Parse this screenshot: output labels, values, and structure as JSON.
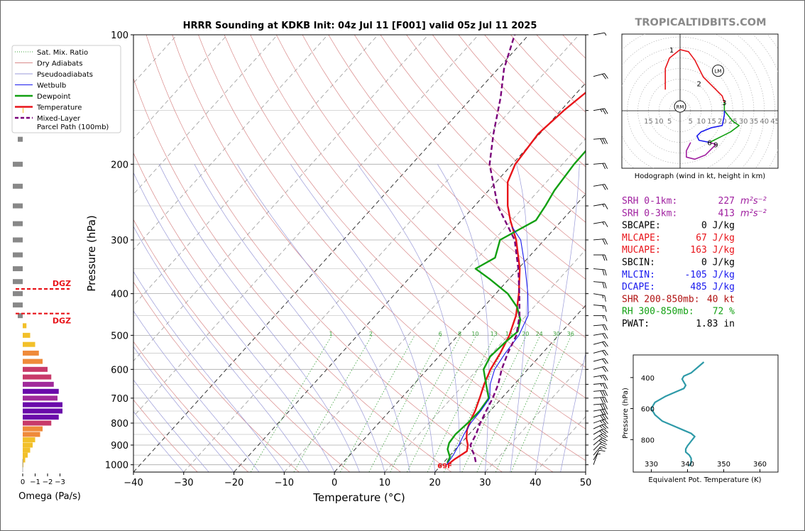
{
  "title": "HRRR Sounding at KDKB Init: 04z Jul 11 [F001] valid 05z Jul 11 2025",
  "watermark": "TROPICALTIDBITS.COM",
  "colors": {
    "temperature": "#e8141a",
    "dewpoint": "#12a012",
    "wetbulb": "#1a1aee",
    "parcel": "#7a007a",
    "dry_adiabat": "#d98a8a",
    "moist_adiabat": "#9a9ad8",
    "mixing_ratio": "#3aa03a",
    "isotherm": "#999999",
    "dgz": "#e8141a",
    "theta_e": "#2e9aa8"
  },
  "chart_data": [
    {
      "type": "line",
      "name": "skew-t",
      "xlabel": "Temperature (°C)",
      "ylabel": "Pressure (hPa)",
      "xlim": [
        -40,
        50
      ],
      "ylim": [
        1040,
        100
      ],
      "y_scale": "log",
      "x_ticks": [
        "−40",
        "−30",
        "−20",
        "−10",
        "0",
        "10",
        "20",
        "30",
        "40",
        "50"
      ],
      "y_ticks": [
        "100",
        "200",
        "300",
        "400",
        "500",
        "600",
        "700",
        "800",
        "900",
        "1000"
      ],
      "surface_temp_label": "69F",
      "legend": [
        "Sat. Mix. Ratio",
        "Dry Adiabats",
        "Pseudoadiabats",
        "Wetbulb",
        "Dewpoint",
        "Temperature",
        "Mixed-Layer Parcel Path (100mb)"
      ],
      "legend_position": "upper-left",
      "mixing_ratio_labels": [
        "1",
        "2",
        "6",
        "8",
        "10",
        "13",
        "16",
        "20",
        "24",
        "30",
        "36"
      ],
      "series": [
        {
          "name": "Temperature",
          "points": [
            [
              1000,
              21.2
            ],
            [
              970,
              21.6
            ],
            [
              930,
              22.6
            ],
            [
              900,
              21.7
            ],
            [
              870,
              20.3
            ],
            [
              830,
              18.8
            ],
            [
              790,
              17.8
            ],
            [
              750,
              17.0
            ],
            [
              700,
              15.6
            ],
            [
              650,
              14.0
            ],
            [
              600,
              12.6
            ],
            [
              550,
              11.6
            ],
            [
              500,
              10.2
            ],
            [
              450,
              8.0
            ],
            [
              400,
              4.6
            ],
            [
              350,
              0.3
            ],
            [
              300,
              -5.6
            ],
            [
              270,
              -10.3
            ],
            [
              250,
              -13.4
            ],
            [
              220,
              -17.7
            ],
            [
              200,
              -19.4
            ],
            [
              170,
              -20.3
            ],
            [
              150,
              -19.4
            ],
            [
              130,
              -17.7
            ],
            [
              113,
              -15.8
            ],
            [
              100,
              -14.3
            ]
          ]
        },
        {
          "name": "Dewpoint",
          "points": [
            [
              990,
              20.8
            ],
            [
              960,
              20.3
            ],
            [
              920,
              18.4
            ],
            [
              890,
              17.6
            ],
            [
              850,
              17.3
            ],
            [
              800,
              17.7
            ],
            [
              750,
              17.9
            ],
            [
              700,
              17.4
            ],
            [
              650,
              14.4
            ],
            [
              600,
              11.2
            ],
            [
              560,
              10.2
            ],
            [
              520,
              10.6
            ],
            [
              490,
              11.2
            ],
            [
              460,
              9.6
            ],
            [
              430,
              6.7
            ],
            [
              400,
              2.4
            ],
            [
              370,
              -3.8
            ],
            [
              350,
              -8.5
            ],
            [
              330,
              -6.6
            ],
            [
              300,
              -8.8
            ],
            [
              270,
              -5.2
            ],
            [
              250,
              -5.9
            ],
            [
              230,
              -6.9
            ],
            [
              200,
              -7.7
            ],
            [
              175,
              -7.8
            ],
            [
              150,
              -6.1
            ],
            [
              130,
              -4.4
            ],
            [
              115,
              -3.0
            ],
            [
              100,
              -1.8
            ]
          ]
        },
        {
          "name": "Wetbulb",
          "points": [
            [
              1000,
              21.0
            ],
            [
              950,
              20.6
            ],
            [
              900,
              19.9
            ],
            [
              850,
              19.0
            ],
            [
              800,
              18.3
            ],
            [
              750,
              18.1
            ],
            [
              700,
              17.6
            ],
            [
              650,
              15.2
            ],
            [
              600,
              13.4
            ],
            [
              550,
              12.6
            ],
            [
              500,
              12.1
            ],
            [
              450,
              10.4
            ],
            [
              400,
              6.4
            ],
            [
              350,
              1.4
            ],
            [
              300,
              -4.7
            ],
            [
              280,
              -8.7
            ]
          ]
        },
        {
          "name": "Mixed-Layer Parcel Path (100mb)",
          "points": [
            [
              985,
              26.3
            ],
            [
              950,
              24.8
            ],
            [
              920,
              23.2
            ],
            [
              900,
              22.2
            ],
            [
              850,
              21.4
            ],
            [
              800,
              20.2
            ],
            [
              750,
              19.2
            ],
            [
              700,
              18.2
            ],
            [
              650,
              16.8
            ],
            [
              600,
              14.8
            ],
            [
              550,
              13.1
            ],
            [
              500,
              11.6
            ],
            [
              450,
              8.7
            ],
            [
              400,
              4.7
            ],
            [
              350,
              0.0
            ],
            [
              300,
              -5.9
            ],
            [
              250,
              -15.4
            ],
            [
              200,
              -24.5
            ],
            [
              170,
              -29.2
            ],
            [
              140,
              -34.3
            ],
            [
              120,
              -38.8
            ],
            [
              100,
              -42.8
            ]
          ]
        }
      ],
      "wind_barbs": [
        {
          "p": 1000,
          "speed": 5,
          "dir": 200
        },
        {
          "p": 975,
          "speed": 10,
          "dir": 210
        },
        {
          "p": 950,
          "speed": 15,
          "dir": 220
        },
        {
          "p": 925,
          "speed": 20,
          "dir": 225
        },
        {
          "p": 900,
          "speed": 25,
          "dir": 230
        },
        {
          "p": 875,
          "speed": 25,
          "dir": 235
        },
        {
          "p": 850,
          "speed": 25,
          "dir": 240
        },
        {
          "p": 825,
          "speed": 25,
          "dir": 245
        },
        {
          "p": 800,
          "speed": 25,
          "dir": 250
        },
        {
          "p": 775,
          "speed": 30,
          "dir": 255
        },
        {
          "p": 750,
          "speed": 30,
          "dir": 260
        },
        {
          "p": 725,
          "speed": 30,
          "dir": 265
        },
        {
          "p": 700,
          "speed": 30,
          "dir": 265
        },
        {
          "p": 675,
          "speed": 30,
          "dir": 265
        },
        {
          "p": 650,
          "speed": 25,
          "dir": 265
        },
        {
          "p": 625,
          "speed": 25,
          "dir": 260
        },
        {
          "p": 600,
          "speed": 20,
          "dir": 255
        },
        {
          "p": 575,
          "speed": 20,
          "dir": 255
        },
        {
          "p": 550,
          "speed": 20,
          "dir": 255
        },
        {
          "p": 525,
          "speed": 20,
          "dir": 255
        },
        {
          "p": 500,
          "speed": 20,
          "dir": 260
        },
        {
          "p": 475,
          "speed": 20,
          "dir": 265
        },
        {
          "p": 450,
          "speed": 15,
          "dir": 270
        },
        {
          "p": 425,
          "speed": 15,
          "dir": 275
        },
        {
          "p": 400,
          "speed": 15,
          "dir": 280
        },
        {
          "p": 375,
          "speed": 20,
          "dir": 275
        },
        {
          "p": 350,
          "speed": 20,
          "dir": 275
        },
        {
          "p": 325,
          "speed": 20,
          "dir": 270
        },
        {
          "p": 300,
          "speed": 20,
          "dir": 265
        },
        {
          "p": 275,
          "speed": 15,
          "dir": 260
        },
        {
          "p": 250,
          "speed": 15,
          "dir": 260
        },
        {
          "p": 225,
          "speed": 20,
          "dir": 260
        },
        {
          "p": 200,
          "speed": 20,
          "dir": 265
        },
        {
          "p": 175,
          "speed": 30,
          "dir": 265
        },
        {
          "p": 150,
          "speed": 25,
          "dir": 260
        },
        {
          "p": 125,
          "speed": 20,
          "dir": 255
        },
        {
          "p": 100,
          "speed": 5,
          "dir": 260
        }
      ]
    },
    {
      "type": "bar",
      "name": "omega",
      "xlabel": "Omega (Pa/s)",
      "x_ticks": [
        "0",
        "−1",
        "−2",
        "−3"
      ],
      "xlim": [
        0,
        -4
      ],
      "dgz_label": "DGZ",
      "dgz_levels": [
        390,
        445
      ],
      "levels": [
        1000,
        975,
        950,
        925,
        900,
        875,
        850,
        825,
        800,
        775,
        750,
        725,
        700,
        675,
        650,
        625,
        600,
        575,
        550,
        525,
        500,
        475,
        450,
        425,
        400,
        375,
        350,
        325,
        300,
        275,
        250,
        225,
        200,
        175,
        150
      ],
      "values": [
        -0.05,
        -0.2,
        -0.4,
        -0.6,
        -0.8,
        -1.0,
        -1.4,
        -1.6,
        -2.3,
        -2.9,
        -3.2,
        -3.2,
        -2.8,
        -2.9,
        -2.5,
        -2.3,
        -2.0,
        -1.6,
        -1.3,
        -1.0,
        -0.6,
        -0.3,
        0.02,
        0.1,
        0.1,
        0.1,
        0.1,
        0.1,
        0.1,
        0.1,
        0.1,
        0.1,
        0.1,
        0.0,
        -0.05
      ]
    },
    {
      "type": "line",
      "name": "hodograph",
      "xlabel": "Hodograph (wind in kt, height in km)",
      "ring_labels": [
        "15",
        "10",
        "5",
        "5",
        "10",
        "15",
        "20",
        "25",
        "30",
        "35",
        "40",
        "45"
      ],
      "storm_motion_labels": [
        "LM",
        "RM"
      ],
      "height_labels": [
        {
          "km": "1",
          "u": -4,
          "v": 29
        },
        {
          "km": "2",
          "u": 9,
          "v": 13
        },
        {
          "km": "3",
          "u": 21,
          "v": 4
        },
        {
          "km": "6",
          "u": 14,
          "v": -15
        },
        {
          "km": "9",
          "u": 17,
          "v": -16
        }
      ],
      "series": [
        {
          "name": "0-3km",
          "color": "#e8141a",
          "points": [
            [
              -7,
              10
            ],
            [
              -7,
              20
            ],
            [
              -5,
              25
            ],
            [
              0,
              29
            ],
            [
              4,
              28
            ],
            [
              7,
              24
            ],
            [
              11,
              16
            ],
            [
              16,
              11
            ],
            [
              20,
              7
            ],
            [
              21,
              4
            ]
          ]
        },
        {
          "name": "3-6km",
          "color": "#12a012",
          "points": [
            [
              21,
              4
            ],
            [
              21,
              0
            ],
            [
              25,
              -5
            ],
            [
              28,
              -7
            ],
            [
              24,
              -10
            ],
            [
              18,
              -13
            ],
            [
              14,
              -15
            ]
          ]
        },
        {
          "name": "6-9km",
          "color": "#1a1aee",
          "points": [
            [
              21,
              0
            ],
            [
              21,
              -2
            ],
            [
              20,
              -7
            ],
            [
              15,
              -8
            ],
            [
              10,
              -10
            ],
            [
              8,
              -12
            ],
            [
              9,
              -14
            ],
            [
              14,
              -15
            ]
          ]
        },
        {
          "name": "9-12km",
          "color": "#a020a0",
          "points": [
            [
              14,
              -15
            ],
            [
              17,
              -16
            ],
            [
              12,
              -21
            ],
            [
              7,
              -23
            ],
            [
              3,
              -22
            ],
            [
              3,
              -19
            ],
            [
              5,
              -15
            ]
          ]
        }
      ],
      "storm_motions": [
        {
          "label": "LM",
          "u": 18,
          "v": 19
        },
        {
          "label": "RM",
          "u": 0,
          "v": 2
        }
      ]
    },
    {
      "type": "line",
      "name": "theta-e",
      "xlabel": "Equivalent Pot. Temperature (K)",
      "ylabel": "Pressure (hPa)",
      "xlim": [
        325,
        365
      ],
      "ylim": [
        1000,
        300
      ],
      "x_ticks": [
        "330",
        "340",
        "350",
        "360"
      ],
      "y_ticks": [
        "400",
        "600",
        "800"
      ],
      "series": [
        {
          "name": "theta-e",
          "points": [
            [
              970,
              340.5
            ],
            [
              950,
              341
            ],
            [
              920,
              341
            ],
            [
              900,
              340.5
            ],
            [
              880,
              339.5
            ],
            [
              860,
              339.5
            ],
            [
              840,
              340
            ],
            [
              810,
              341
            ],
            [
              780,
              342
            ],
            [
              760,
              341
            ],
            [
              740,
              339
            ],
            [
              710,
              336
            ],
            [
              680,
              333
            ],
            [
              640,
              331
            ],
            [
              600,
              330
            ],
            [
              560,
              331
            ],
            [
              520,
              334
            ],
            [
              490,
              337
            ],
            [
              470,
              339
            ],
            [
              450,
              339.5
            ],
            [
              430,
              339
            ],
            [
              410,
              338.5
            ],
            [
              390,
              339
            ],
            [
              370,
              341
            ],
            [
              350,
              342
            ],
            [
              330,
              343
            ],
            [
              300,
              344.5
            ]
          ]
        }
      ]
    }
  ],
  "stats": [
    {
      "label": "SRH 0-1km:",
      "value": "227",
      "unit": "m²s⁻²",
      "color": "#a020a0"
    },
    {
      "label": "SRH 0-3km:",
      "value": "413",
      "unit": "m²s⁻²",
      "color": "#a020a0"
    },
    {
      "label": "SBCAPE:",
      "value": "0 J/kg",
      "unit": "",
      "color": "#000000"
    },
    {
      "label": "MLCAPE:",
      "value": "67 J/kg",
      "unit": "",
      "color": "#e8141a"
    },
    {
      "label": "MUCAPE:",
      "value": "163 J/kg",
      "unit": "",
      "color": "#e8141a"
    },
    {
      "label": "SBCIN:",
      "value": "0 J/kg",
      "unit": "",
      "color": "#000000"
    },
    {
      "label": "MLCIN:",
      "value": "-105 J/kg",
      "unit": "",
      "color": "#1a1aee"
    },
    {
      "label": "DCAPE:",
      "value": "485 J/kg",
      "unit": "",
      "color": "#1a1aee"
    },
    {
      "label": "SHR 200-850mb:",
      "value": "40 kt",
      "unit": "",
      "color": "#b01010"
    },
    {
      "label": "RH 300-850mb:",
      "value": "72 %",
      "unit": "",
      "color": "#12a012"
    },
    {
      "label": "PWAT:",
      "value": "1.83 in",
      "unit": "",
      "color": "#000000"
    }
  ]
}
